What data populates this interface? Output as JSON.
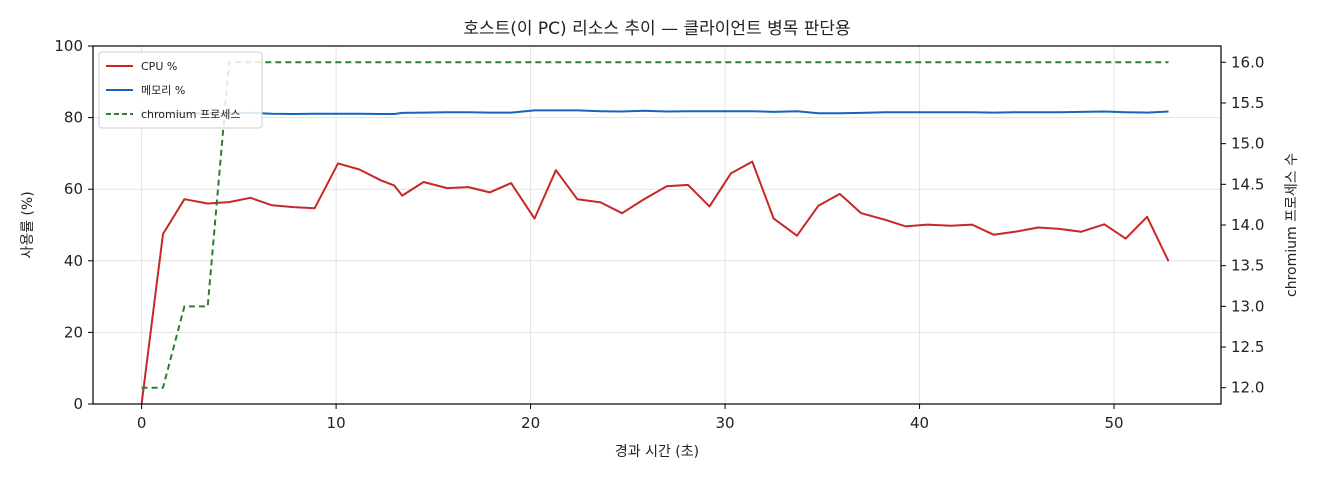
{
  "chart_data": {
    "type": "line",
    "title": "호스트(이 PC) 리소스 추이 — 클라이언트 병목 판단용",
    "xlabel": "경과 시간 (초)",
    "ylabel": "사용률 (%)",
    "y2label": "chromium 프로세스 수",
    "xlim": [
      -2.5,
      55.5
    ],
    "ylim": [
      0,
      100
    ],
    "y2lim": [
      11.8,
      16.2
    ],
    "x_ticks": [
      0,
      10,
      20,
      30,
      40,
      50
    ],
    "y_ticks": [
      0,
      20,
      40,
      60,
      80,
      100
    ],
    "y2_ticks": [
      "12.0",
      "12.5",
      "13.0",
      "13.5",
      "14.0",
      "14.5",
      "15.0",
      "15.5",
      "16.0"
    ],
    "grid": true,
    "legend_position": "top-left",
    "series": [
      {
        "name": "CPU %",
        "axis": "left",
        "color": "#c62828",
        "style": "solid",
        "x": [
          0,
          1.1,
          2.2,
          3.4,
          4.5,
          5.6,
          6.7,
          7.8,
          8.9,
          10.1,
          11.2,
          12.3,
          13.0,
          13.4,
          14.5,
          15.7,
          16.8,
          17.9,
          19.0,
          20.2,
          21.3,
          22.4,
          23.6,
          24.7,
          25.8,
          27.0,
          28.1,
          29.2,
          30.3,
          31.4,
          32.5,
          33.7,
          34.8,
          35.9,
          37.0,
          38.2,
          39.3,
          40.4,
          41.6,
          42.7,
          43.8,
          44.9,
          46.1,
          47.2,
          48.3,
          49.5,
          50.6,
          51.7,
          52.8
        ],
        "values": [
          0,
          47.5,
          57.2,
          56.0,
          56.4,
          57.6,
          55.5,
          55.0,
          54.7,
          67.2,
          65.5,
          62.5,
          61.0,
          58.2,
          62.0,
          60.3,
          60.6,
          59.1,
          61.7,
          51.8,
          65.3,
          57.2,
          56.3,
          53.3,
          57.1,
          60.8,
          61.2,
          55.2,
          64.4,
          67.7,
          51.8,
          47.0,
          55.4,
          58.7,
          53.3,
          51.5,
          49.6,
          50.1,
          49.8,
          50.1,
          47.3,
          48.1,
          49.3,
          48.9,
          48.1,
          50.2,
          46.2,
          52.3,
          39.9
        ]
      },
      {
        "name": "메모리 %",
        "axis": "left",
        "color": "#1565c0",
        "style": "solid",
        "x": [
          0,
          1.1,
          2.2,
          3.4,
          4.5,
          5.6,
          6.7,
          7.8,
          8.9,
          10.1,
          11.2,
          12.3,
          13.0,
          13.4,
          14.5,
          15.7,
          16.8,
          17.9,
          19.0,
          20.2,
          21.3,
          22.4,
          23.6,
          24.7,
          25.8,
          27.0,
          28.1,
          29.2,
          30.3,
          31.4,
          32.5,
          33.7,
          34.8,
          35.9,
          37.0,
          38.2,
          39.3,
          40.4,
          41.6,
          42.7,
          43.8,
          44.9,
          46.1,
          47.2,
          48.3,
          49.5,
          50.6,
          51.7,
          52.8
        ],
        "values": [
          81.5,
          81.4,
          81.3,
          81.2,
          81.2,
          81.3,
          81.1,
          81.0,
          81.1,
          81.1,
          81.1,
          81.0,
          81.0,
          81.3,
          81.4,
          81.5,
          81.5,
          81.4,
          81.4,
          82.0,
          82.0,
          82.0,
          81.8,
          81.7,
          81.9,
          81.7,
          81.8,
          81.8,
          81.8,
          81.8,
          81.6,
          81.8,
          81.2,
          81.2,
          81.3,
          81.5,
          81.5,
          81.5,
          81.5,
          81.5,
          81.4,
          81.5,
          81.5,
          81.5,
          81.6,
          81.7,
          81.5,
          81.4,
          81.7
        ]
      },
      {
        "name": "chromium 프로세스",
        "axis": "right",
        "color": "#2e7d32",
        "style": "dashed",
        "x": [
          0,
          1.1,
          2.2,
          3.4,
          4.5,
          5.6,
          52.8
        ],
        "values": [
          12,
          12,
          13,
          13,
          16,
          16,
          16
        ]
      }
    ]
  }
}
